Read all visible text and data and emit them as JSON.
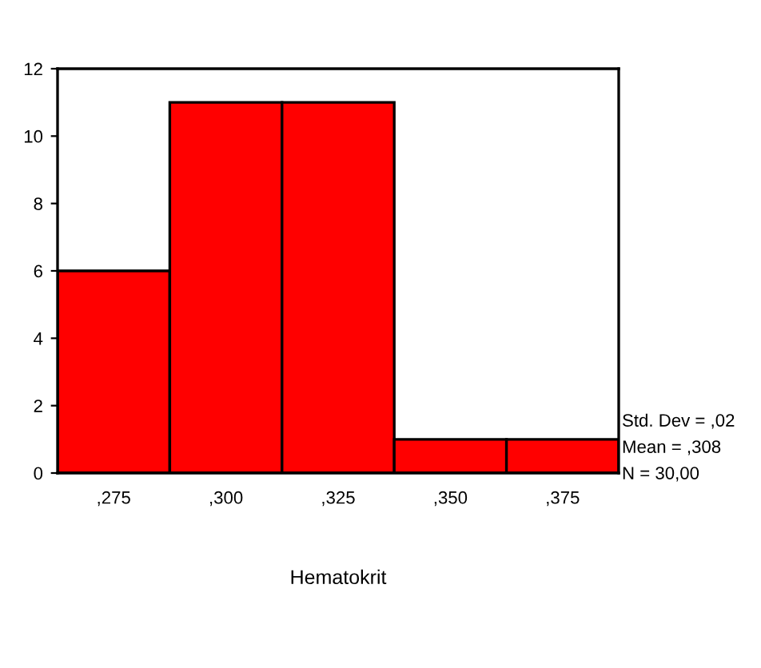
{
  "chart_data": {
    "type": "bar",
    "xlabel": "Hematokrit",
    "categories": [
      ",275",
      ",300",
      ",325",
      ",350",
      ",375"
    ],
    "values": [
      6,
      11,
      11,
      1,
      1
    ],
    "color": "#ff0000",
    "ylim": [
      0,
      12
    ],
    "yticks": [
      0,
      2,
      4,
      6,
      8,
      10,
      12
    ],
    "grid": false,
    "annotations": [
      "Std. Dev = ,02",
      "Mean = ,308",
      "N = 30,00"
    ]
  }
}
